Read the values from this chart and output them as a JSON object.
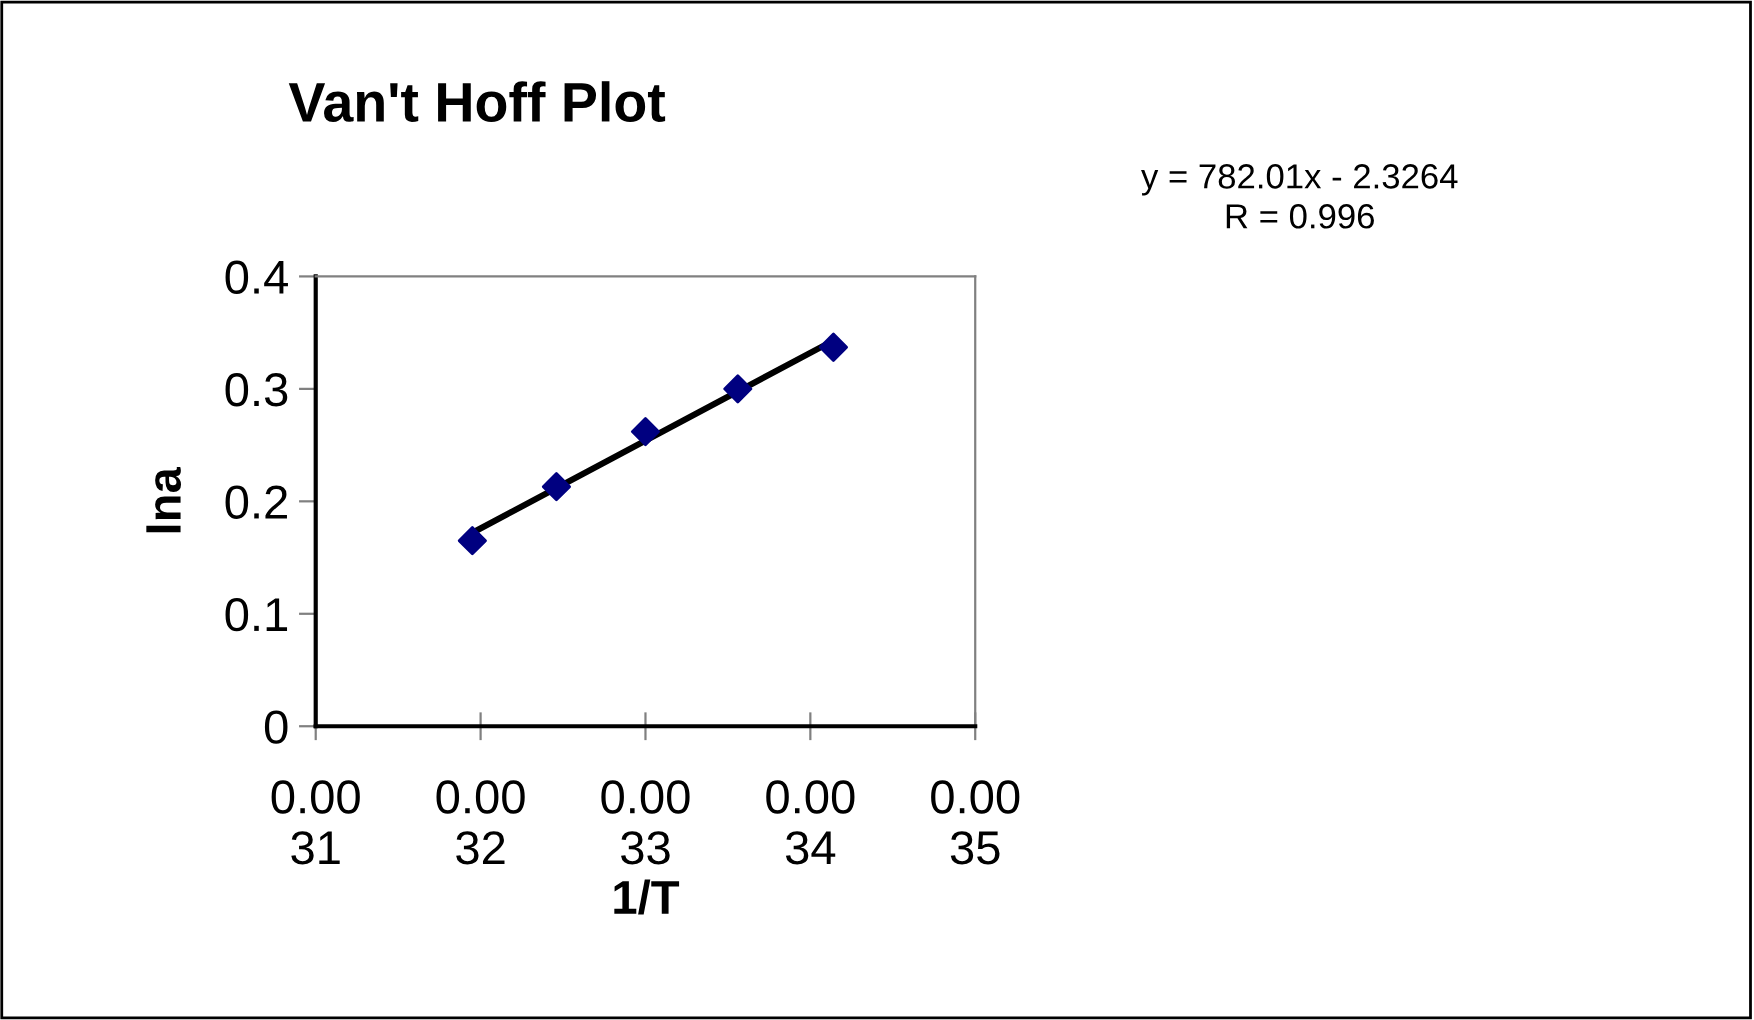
{
  "chart_data": {
    "type": "scatter",
    "title": "Van't Hoff Plot",
    "xlabel": "1/T",
    "ylabel": "lna",
    "series": [
      {
        "color": "#000080",
        "marker": "diamond",
        "x": [
          0.003195,
          0.003246,
          0.0033,
          0.003356,
          0.003414
        ],
        "values": [
          0.165,
          0.213,
          0.262,
          0.3,
          0.337
        ]
      },
      {
        "type": "line",
        "color": "#000000",
        "marker": "none",
        "line_style": "solid",
        "x": [
          0.003195,
          0.003414
        ],
        "values": [
          0.172,
          0.343
        ]
      }
    ],
    "xlim": [
      0.0031,
      0.0035
    ],
    "xticks": [
      0.0031,
      0.0032,
      0.0033,
      0.0034,
      0.0035
    ],
    "ylim": [
      0,
      0.4
    ],
    "yticks": [
      0,
      0.1,
      0.2,
      0.3,
      0.4
    ],
    "grid": false,
    "legend": false,
    "annotations": [
      "y = 782.01x - 2.3264\nR = 0.996"
    ]
  }
}
